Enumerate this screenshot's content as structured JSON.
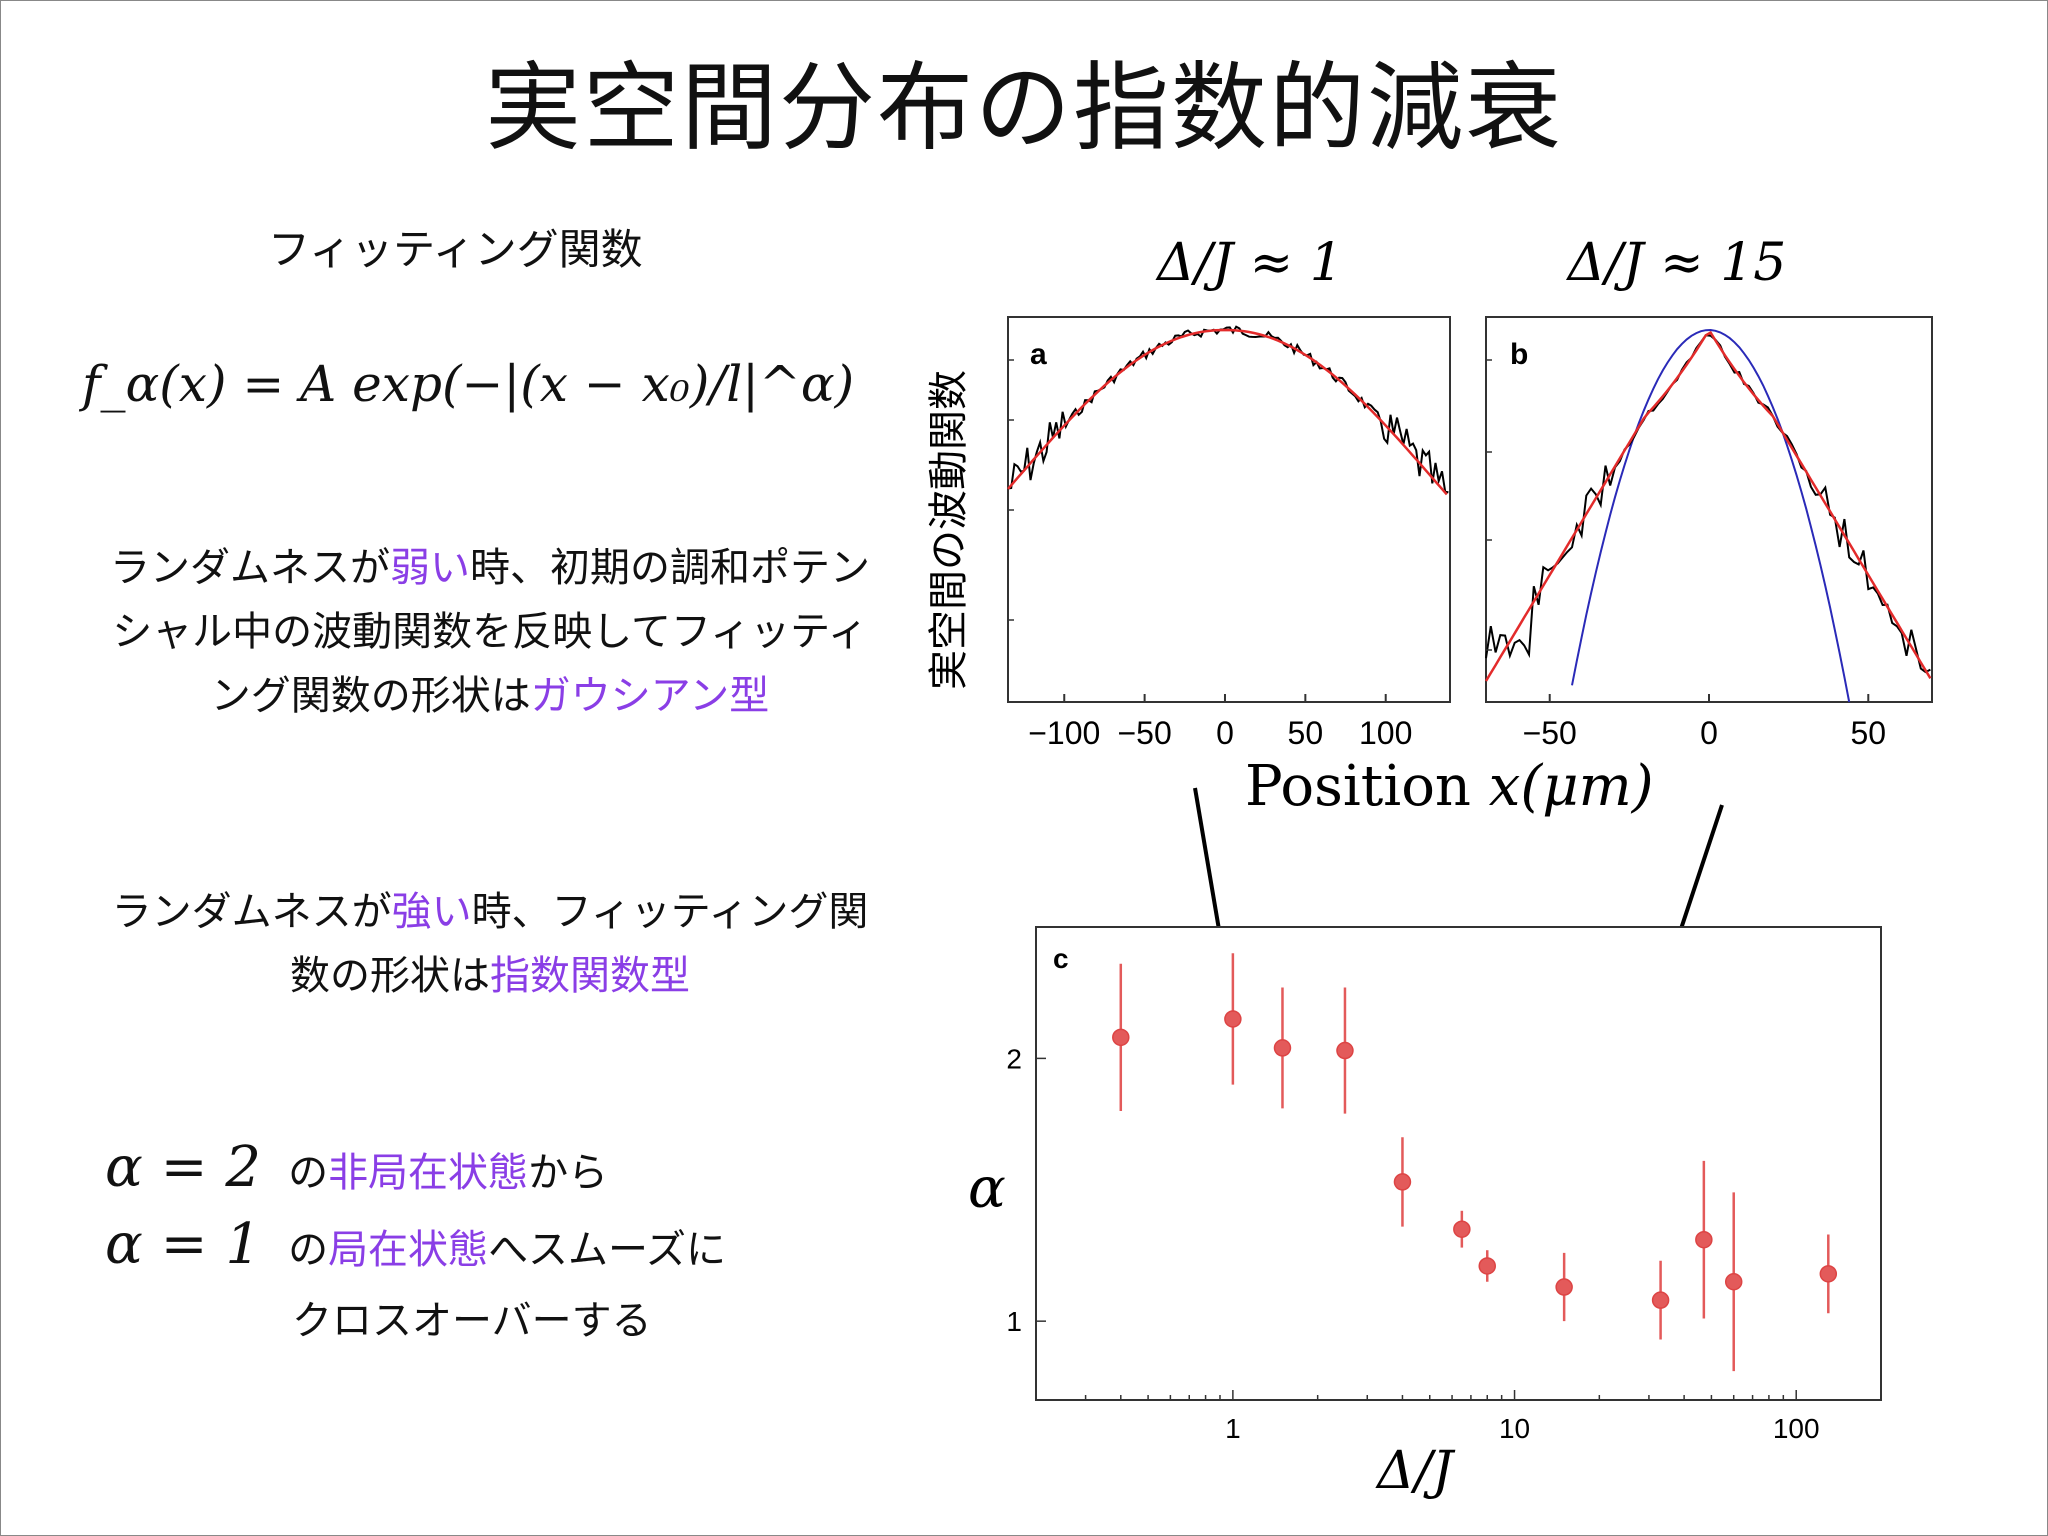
{
  "slide": {
    "title": "実空間分布の指数的減衰",
    "fitting_heading": "フィッティング関数",
    "formula": "f_α(x) = A exp(−|(x − x₀)/l|^α)",
    "weak": {
      "pre": "ランダムネスが",
      "hl1": "弱い",
      "mid": "時、初期の調和ポテンシャル中の波動関数を反映してフィッティング関数の形状は",
      "hl2": "ガウシアン型"
    },
    "strong": {
      "pre": "ランダムネスが",
      "hl1": "強い",
      "mid": "時、フィッティング関数の形状は",
      "hl2": "指数関数型"
    },
    "alpha2": {
      "math": "α = 2",
      "pre": "の",
      "hl": "非局在状態",
      "post": "から"
    },
    "alpha1": {
      "math": "α = 1",
      "pre": "の",
      "hl": "局在状態",
      "post": "へスムーズに"
    },
    "crossover": "クロスオーバーする",
    "highlight_color": "#8a3ee6"
  },
  "figure": {
    "label_a_head": "Δ/J ≈ 1",
    "label_b_head": "Δ/J ≈ 15",
    "y_axis_label": "実空間の波動関数",
    "x_axis_label_text": "Position ",
    "x_axis_label_math": "x(μm)",
    "panel_c_ylabel": "α",
    "panel_c_xlabel": "Δ/J"
  },
  "chart_data": [
    {
      "type": "line",
      "panel": "a",
      "xlabel": "Position x(μm)",
      "ylabel": "実空間の波動関数",
      "xticks": [
        -100,
        -50,
        0,
        50,
        100
      ],
      "xlim": [
        -135,
        140
      ],
      "series": [
        {
          "style": "data",
          "color": "#000000"
        },
        {
          "style": "fit",
          "color": "#e32b2b"
        }
      ]
    },
    {
      "type": "line",
      "panel": "b",
      "xlabel": "Position x(μm)",
      "xticks": [
        -50,
        0,
        50
      ],
      "xlim": [
        -70,
        70
      ],
      "series": [
        {
          "style": "data",
          "color": "#000000"
        },
        {
          "style": "exp-fit",
          "color": "#e32b2b"
        },
        {
          "style": "gauss-fit",
          "color": "#2a2ab8"
        }
      ]
    },
    {
      "type": "scatter",
      "panel": "c",
      "xlabel": "Δ/J",
      "ylabel": "α",
      "xscale": "log",
      "xlim": [
        0.2,
        200
      ],
      "ylim": [
        0.7,
        2.5
      ],
      "xticks": [
        1,
        10,
        100
      ],
      "yticks": [
        1,
        2
      ],
      "color": "#e35a5a",
      "points": [
        {
          "x": 0.4,
          "y": 2.08,
          "err": 0.28
        },
        {
          "x": 1.0,
          "y": 2.15,
          "err": 0.25
        },
        {
          "x": 1.5,
          "y": 2.04,
          "err": 0.23
        },
        {
          "x": 2.5,
          "y": 2.03,
          "err": 0.24
        },
        {
          "x": 4.0,
          "y": 1.53,
          "err": 0.17
        },
        {
          "x": 6.5,
          "y": 1.35,
          "err": 0.07
        },
        {
          "x": 8.0,
          "y": 1.21,
          "err": 0.06
        },
        {
          "x": 15.0,
          "y": 1.13,
          "err": 0.13
        },
        {
          "x": 33.0,
          "y": 1.08,
          "err": 0.15
        },
        {
          "x": 47.0,
          "y": 1.31,
          "err": 0.3
        },
        {
          "x": 60.0,
          "y": 1.15,
          "err": 0.34
        },
        {
          "x": 130.0,
          "y": 1.18,
          "err": 0.15
        }
      ]
    }
  ]
}
